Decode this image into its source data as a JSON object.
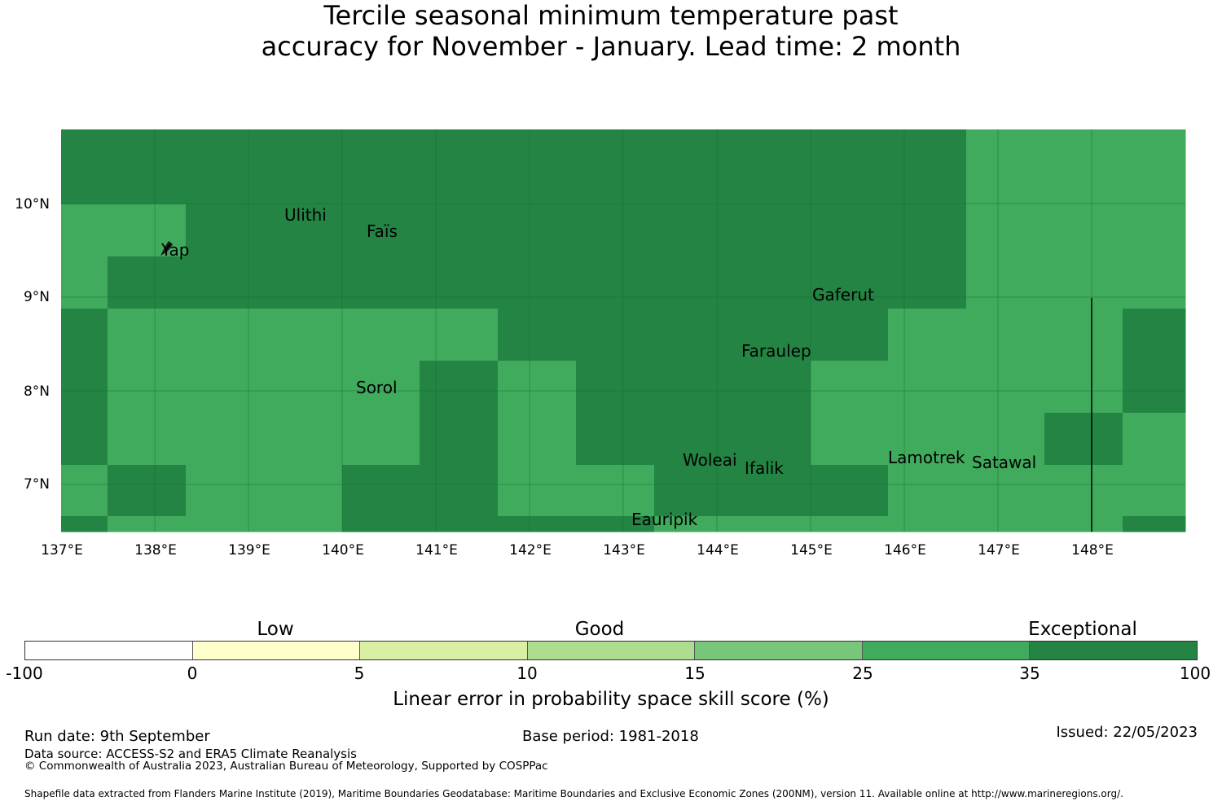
{
  "title": {
    "line1": "Tercile seasonal minimum temperature past",
    "line2": "accuracy for November - January. Lead time: 2 month"
  },
  "map": {
    "lon_range": [
      137,
      149
    ],
    "lat_range": [
      6.5,
      10.8
    ],
    "x_ticks": [
      "137°E",
      "138°E",
      "139°E",
      "140°E",
      "141°E",
      "142°E",
      "143°E",
      "144°E",
      "145°E",
      "146°E",
      "147°E",
      "148°E"
    ],
    "y_ticks": [
      "10°N",
      "9°N",
      "8°N",
      "7°N"
    ],
    "cell_colors": {
      "high": "#238443",
      "mid": "#41ab5d"
    },
    "place_names": [
      "Ulithi",
      "Faïs",
      "Yap",
      "Gaferut",
      "Faraulep",
      "Sorol",
      "Woleai",
      "Ifalik",
      "Lamotrek",
      "Satawal",
      "Eauripik"
    ],
    "grid_note_rows": [
      "HHHHHHHHHHHHMMMHHHHHH",
      "HHHHHHHHHHHHMMMHHMHHH",
      "MMHHHHHHHHHHMMMMMHHHM",
      "MHHHHHHHHHHHMMMHMMMMM",
      "HMMMMMHHHHHMMMHMMMMMM",
      "HMMMMHMHHHMMMMHMMMMMM",
      "HMMMMHMHHHMMMHMMMMMMM",
      "MHMMHHMMHHHMMMMMHMMMM",
      "HMMMHHHHMMMMMMHHHMMMM",
      "HHHHHHMMMMMMMMHMMMMMM"
    ]
  },
  "legend": {
    "categories": [
      "Low",
      "Good",
      "Exceptional"
    ],
    "segments": [
      {
        "from": -100,
        "to": 0,
        "color": "#ffffff"
      },
      {
        "from": 0,
        "to": 5,
        "color": "#ffffcc"
      },
      {
        "from": 5,
        "to": 10,
        "color": "#d9f0a3"
      },
      {
        "from": 10,
        "to": 15,
        "color": "#addd8e"
      },
      {
        "from": 15,
        "to": 25,
        "color": "#78c679"
      },
      {
        "from": 25,
        "to": 35,
        "color": "#41ab5d"
      },
      {
        "from": 35,
        "to": 100,
        "color": "#238443"
      }
    ],
    "tick_labels": [
      "-100",
      "0",
      "5",
      "10",
      "15",
      "25",
      "35",
      "100"
    ],
    "label": "Linear error in probability space skill score (%)"
  },
  "footer": {
    "run_date": "Run date: 9th September",
    "base_period": "Base period: 1981-2018",
    "issued": "Issued: 22/05/2023",
    "data_source": "Data source: ACCESS-S2 and ERA5 Climate Reanalysis",
    "copyright": "© Commonwealth of Australia 2023, Australian Bureau of Meteorology, Supported by COSPPac",
    "shapefile": "Shapefile data extracted from Flanders Marine Institute (2019), Maritime Boundaries Geodatabase: Maritime Boundaries and Exclusive Economic Zones (200NM), version 11. Available online at http://www.marineregions.org/."
  }
}
